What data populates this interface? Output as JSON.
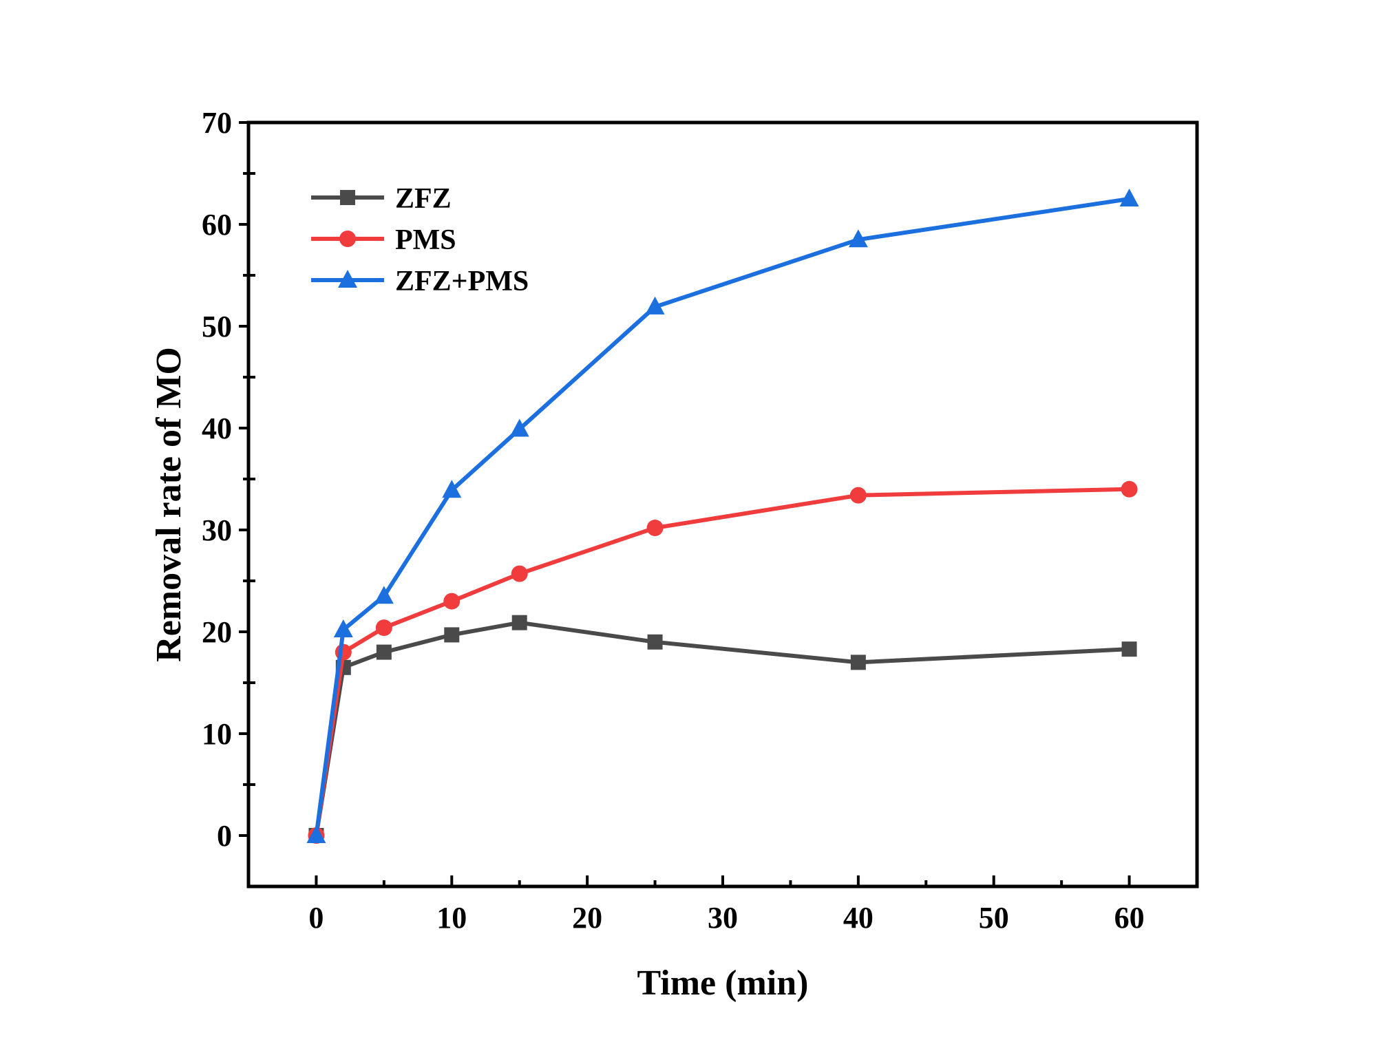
{
  "chart_data": {
    "type": "line",
    "xlabel": "Time (min)",
    "ylabel": "Removal rate of MO",
    "xlim": [
      -5,
      65
    ],
    "ylim": [
      -5,
      70
    ],
    "xticks": [
      0,
      10,
      20,
      30,
      40,
      50,
      60
    ],
    "yticks": [
      0,
      10,
      20,
      30,
      40,
      50,
      60,
      70
    ],
    "x": [
      0,
      2,
      5,
      10,
      15,
      25,
      40,
      60
    ],
    "legend_position": "top-left",
    "series": [
      {
        "name": "ZFZ",
        "color": "#4a4a4a",
        "marker": "square",
        "values": [
          0,
          16.5,
          18.0,
          19.7,
          20.9,
          19.0,
          17.0,
          18.3
        ]
      },
      {
        "name": "PMS",
        "color": "#f03c3c",
        "marker": "circle",
        "values": [
          0,
          18.0,
          20.4,
          23.0,
          25.7,
          30.2,
          33.4,
          34.0
        ]
      },
      {
        "name": "ZFZ+PMS",
        "color": "#1c6fde",
        "marker": "triangle",
        "values": [
          0,
          20.2,
          23.5,
          33.9,
          39.9,
          51.9,
          58.5,
          62.5
        ]
      }
    ]
  }
}
